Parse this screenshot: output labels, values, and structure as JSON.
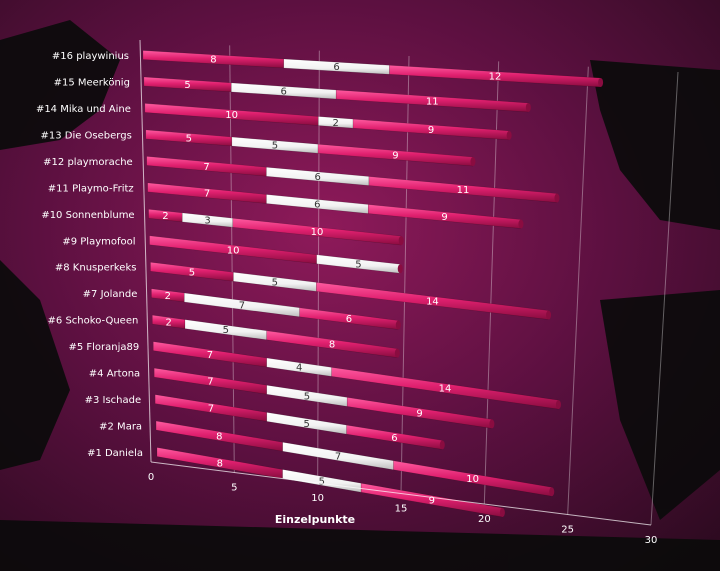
{
  "chart_data": {
    "type": "bar",
    "orientation": "horizontal",
    "stacked": true,
    "categories": [
      "#1 Daniela",
      "#2 Mara",
      "#3 Ischade",
      "#4 Artona",
      "#5 Floranja89",
      "#6 Schoko-Queen",
      "#7 Jolande",
      "#8 Knusperkeks",
      "#9 Playmofool",
      "#10 Sonnenblume",
      "#11 Playmo-Fritz",
      "#12 playmorache",
      "#13 Die Osebergs",
      "#14 Mika und Aine",
      "#15 Meerkönig",
      "#16 playwinius"
    ],
    "series": [
      {
        "color": "#e0206f",
        "values": [
          8,
          8,
          7,
          7,
          7,
          2,
          2,
          5,
          10,
          2,
          7,
          7,
          5,
          10,
          5,
          8
        ]
      },
      {
        "color": "#ffffff",
        "values": [
          5,
          7,
          5,
          5,
          4,
          5,
          7,
          5,
          5,
          3,
          6,
          6,
          5,
          2,
          6,
          6
        ]
      },
      {
        "color": "#e0206f",
        "values": [
          9,
          10,
          6,
          9,
          14,
          8,
          6,
          14,
          null,
          10,
          9,
          11,
          9,
          9,
          11,
          12
        ]
      }
    ],
    "xlabel": "Einzelpunkte",
    "xlim": [
      0,
      30
    ],
    "xticks": [
      "0",
      "5",
      "10",
      "15",
      "20",
      "25",
      "30"
    ],
    "colors": {
      "pink": "#e0206f",
      "white": "#ffffff",
      "background": "#1a0a14"
    }
  }
}
